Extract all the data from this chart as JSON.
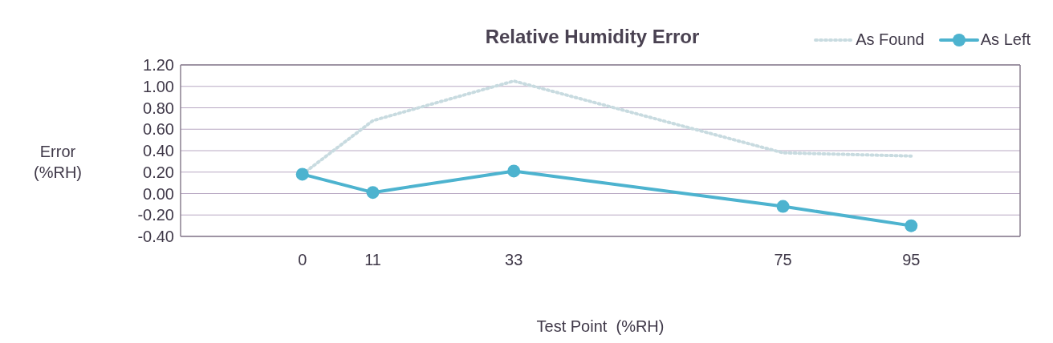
{
  "chart_data": {
    "type": "line",
    "title": "Relative Humidity Error",
    "xlabel": "Test Point  (%RH)",
    "ylabel": "Error (%RH)",
    "x": [
      0,
      11,
      33,
      75,
      95
    ],
    "series": [
      {
        "name": "As Found",
        "color": "#c8dbe0",
        "values": [
          0.18,
          0.68,
          1.05,
          0.38,
          0.35
        ],
        "marker": "none",
        "line_style": "dotted"
      },
      {
        "name": "As Left",
        "color": "#4db3cf",
        "values": [
          0.18,
          0.01,
          0.21,
          -0.12,
          -0.3
        ]
      }
    ],
    "xlim": [
      -19,
      112
    ],
    "xticks": [
      0,
      11,
      33,
      75,
      95
    ],
    "ylim": [
      -0.4,
      1.2
    ],
    "yticks": [
      {
        "value": -0.4,
        "label": "-0.40"
      },
      {
        "value": -0.2,
        "label": "-0.20"
      },
      {
        "value": 0,
        "label": "0.00"
      },
      {
        "value": 0.2,
        "label": "0.20"
      },
      {
        "value": 0.4,
        "label": "0.40"
      },
      {
        "value": 0.6,
        "label": "0.60"
      },
      {
        "value": 0.8,
        "label": "0.80"
      },
      {
        "value": 1.0,
        "label": "1.00"
      },
      {
        "value": 1.2,
        "label": "1.20"
      }
    ],
    "grid": "y",
    "legend": "top right",
    "marker": "circle",
    "line_style": "solid"
  }
}
